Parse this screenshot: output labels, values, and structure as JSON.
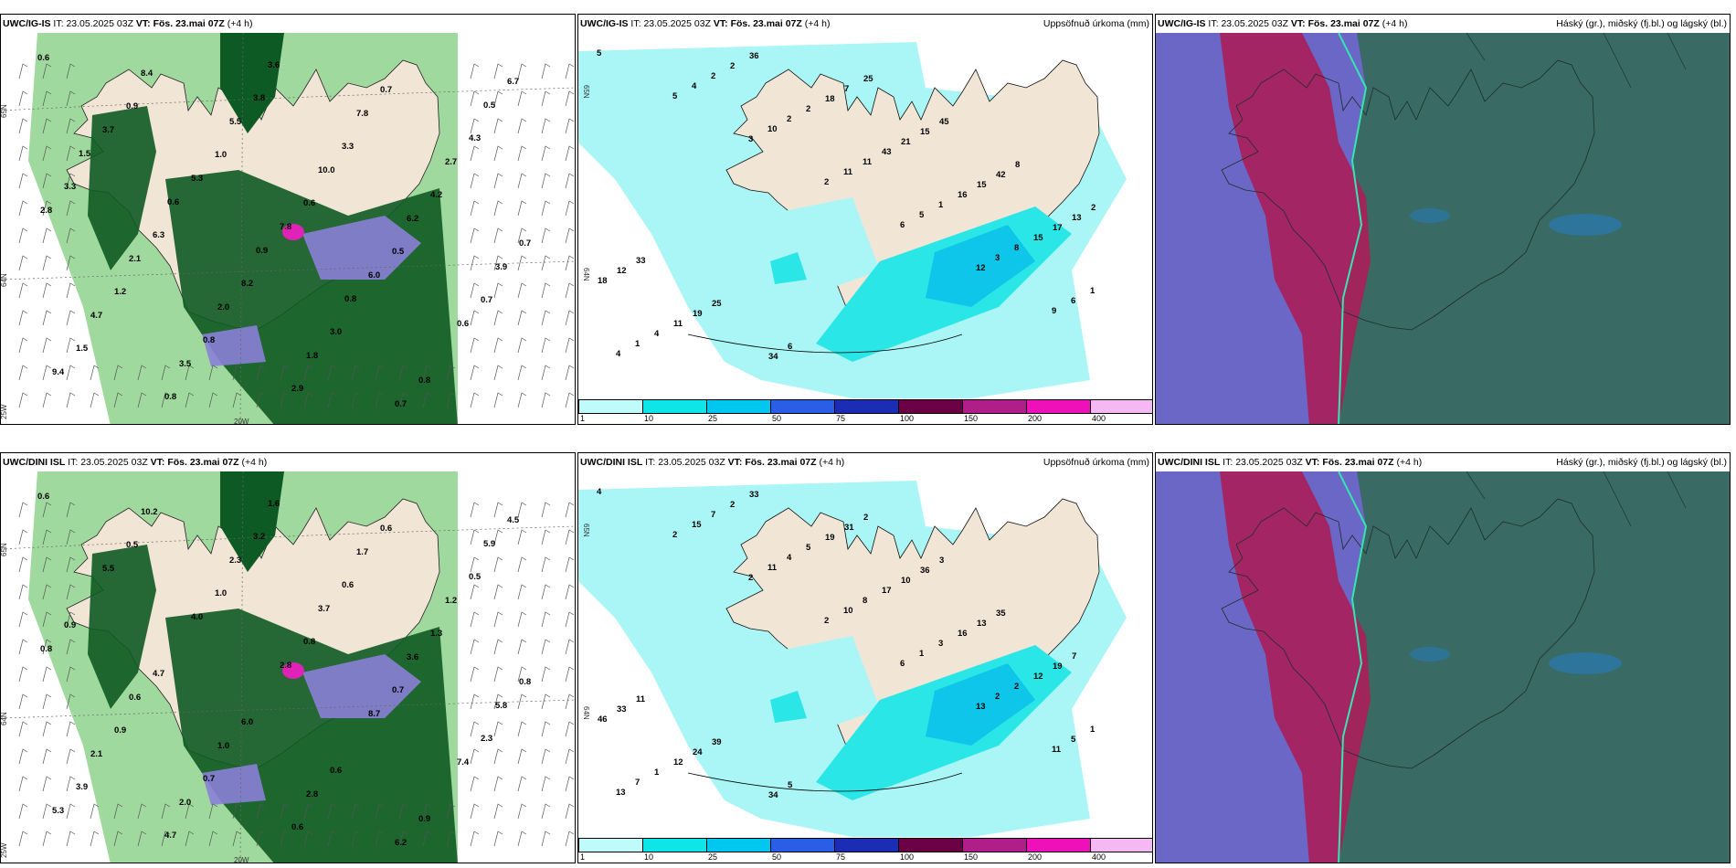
{
  "rows": [
    {
      "model": "UWC/IG-IS",
      "it_label": "IT:",
      "it": "23.05.2025 03Z",
      "vt_label": "VT:",
      "vt": "Fös. 23.mai 07Z",
      "lead": "(+4 h)",
      "precip_title": "Uppsöfnuð úrkoma (mm)",
      "cloud_title": "Háský (gr.), miðský (fj.bl.) og lágský (bl.)",
      "wind_values": [
        "0.6",
        "0.9",
        "1.0",
        "0.6",
        "0.5",
        "0.7",
        "1.5",
        "0.8",
        "3.8",
        "3.3",
        "4.2",
        "0.7",
        "1.2",
        "0.8",
        "2.9",
        "0.7",
        "4.3",
        "3.3",
        "6.3",
        "8.2",
        "3.0",
        "0.8",
        "6.7",
        "3.7",
        "5.3",
        "7.8",
        "6.0",
        "0.6",
        "9.4",
        "8.4",
        "5.5",
        "10.0",
        "6.2",
        "3.9",
        "4.7",
        "3.5",
        "3.6",
        "7.8",
        "2.7",
        "2.8",
        "2.1",
        "2.0",
        "1.8",
        "0.7",
        "0.5",
        "1.5",
        "0.6",
        "0.9",
        "0.8"
      ],
      "precip_values": [
        "5",
        "5",
        "3",
        "2",
        "6",
        "12",
        "9",
        "4",
        "4",
        "10",
        "11",
        "5",
        "3",
        "6",
        "1",
        "2",
        "2",
        "11",
        "1",
        "8",
        "1",
        "4",
        "2",
        "2",
        "43",
        "16",
        "15",
        "18",
        "11",
        "36",
        "18",
        "21",
        "15",
        "17",
        "12",
        "19",
        "34",
        "7",
        "15",
        "42",
        "13",
        "33",
        "25",
        "6",
        "25",
        "45",
        "8",
        "2"
      ]
    },
    {
      "model": "UWC/DINI ISL",
      "it_label": "IT:",
      "it": "23.05.2025 03Z",
      "vt_label": "VT:",
      "vt": "Fös. 23.mai 07Z",
      "lead": "(+4 h)",
      "precip_title": "Uppsöfnuð úrkoma (mm)",
      "cloud_title": "Háský (gr.), miðský (fj.bl.) og lágský (bl.)",
      "wind_values": [
        "0.6",
        "0.5",
        "1.0",
        "0.8",
        "0.7",
        "2.3",
        "3.9",
        "4.7",
        "3.2",
        "0.6",
        "1.3",
        "0.8",
        "0.9",
        "0.7",
        "0.6",
        "0.6",
        "0.5",
        "0.9",
        "4.7",
        "6.0",
        "0.6",
        "0.9",
        "4.5",
        "5.5",
        "4.0",
        "2.8",
        "8.7",
        "7.4",
        "5.3",
        "10.2",
        "2.3",
        "3.7",
        "3.6",
        "5.8",
        "2.1",
        "2.0",
        "1.6",
        "1.7",
        "1.2",
        "0.8",
        "0.6",
        "1.0",
        "2.8",
        "6.2",
        "5.9"
      ],
      "precip_values": [
        "4",
        "2",
        "2",
        "2",
        "6",
        "13",
        "11",
        "13",
        "15",
        "11",
        "10",
        "1",
        "2",
        "5",
        "7",
        "7",
        "4",
        "8",
        "3",
        "2",
        "1",
        "1",
        "2",
        "5",
        "17",
        "16",
        "12",
        "46",
        "12",
        "33",
        "19",
        "10",
        "13",
        "19",
        "33",
        "24",
        "34",
        "31",
        "36",
        "35",
        "7",
        "11",
        "39",
        "5",
        "2",
        "3"
      ]
    }
  ],
  "axes": {
    "lat_top": "65N",
    "lat_bottom": "64N",
    "lon_left": "25W",
    "lon_mid": "20W"
  },
  "colorbar": {
    "ticks": [
      "1",
      "10",
      "25",
      "50",
      "75",
      "100",
      "150",
      "200",
      "400"
    ],
    "colors": [
      "#c0fbfb",
      "#0de6e6",
      "#00c7f0",
      "#2a5ee6",
      "#1a2db4",
      "#6b0044",
      "#b01e8a",
      "#ee10b8",
      "#f5b8f2"
    ]
  },
  "colors": {
    "land": "#f1e5d6",
    "precip_light": "#aaf6f6",
    "precip_mid": "#2ae6e6",
    "green_dark": "#0e5a24",
    "green_light": "#8fd28c",
    "cloud_high": "#ab1e59",
    "cloud_mid": "#6b67c6",
    "cloud_low": "#3a6a64"
  }
}
